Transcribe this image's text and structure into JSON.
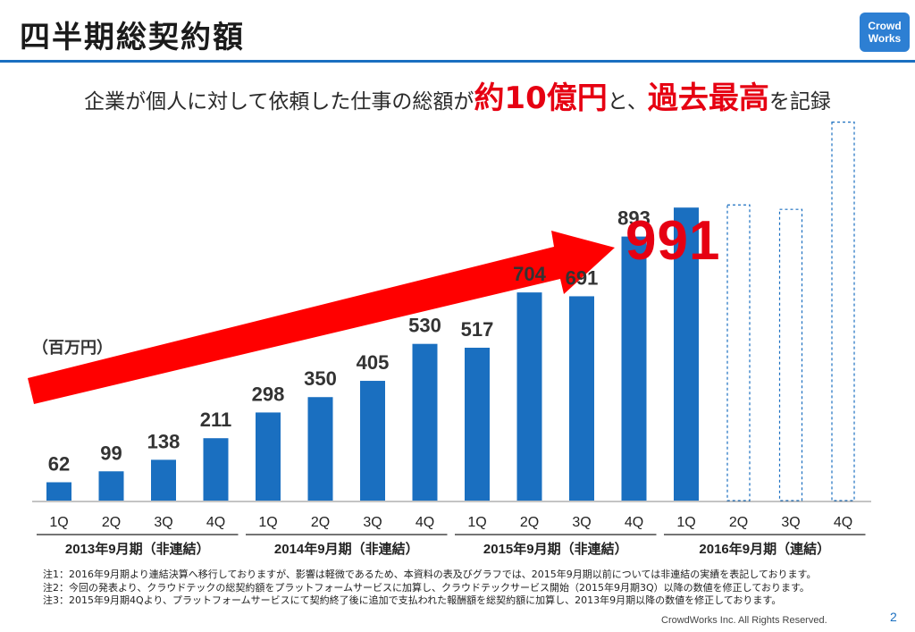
{
  "header": {
    "title": "四半期総契約額"
  },
  "logo": {
    "line1": "Crowd",
    "line2": "Works"
  },
  "subtitle": {
    "part1": "企業が個人に対して依頼した仕事の総額が",
    "highlight1": "約10億円",
    "part2": "と、",
    "highlight2": "過去最高",
    "part3": "を記録"
  },
  "unit_label": "（百万円）",
  "highlight_value": "991",
  "chart_data": {
    "type": "bar",
    "title": "四半期総契約額",
    "ylabel": "（百万円）",
    "ylim": [
      0,
      1300
    ],
    "categories": [
      "1Q",
      "2Q",
      "3Q",
      "4Q",
      "1Q",
      "2Q",
      "3Q",
      "4Q",
      "1Q",
      "2Q",
      "3Q",
      "4Q",
      "1Q",
      "2Q",
      "3Q",
      "4Q"
    ],
    "values": [
      62,
      99,
      138,
      211,
      298,
      350,
      405,
      530,
      517,
      704,
      691,
      893,
      991,
      null,
      null,
      null
    ],
    "value_labels": [
      "62",
      "99",
      "138",
      "211",
      "298",
      "350",
      "405",
      "530",
      "517",
      "704",
      "691",
      "893",
      "",
      "",
      "",
      ""
    ],
    "placeholders": [
      {
        "index": 13,
        "value": 1000
      },
      {
        "index": 14,
        "value": 985
      },
      {
        "index": 15,
        "value": 1280
      }
    ],
    "groups": [
      {
        "label": "2013年9月期（非連結）",
        "start": 0,
        "end": 3
      },
      {
        "label": "2014年9月期（非連結）",
        "start": 4,
        "end": 7
      },
      {
        "label": "2015年9月期（非連結）",
        "start": 8,
        "end": 11
      },
      {
        "label": "2016年9月期（連結）",
        "start": 12,
        "end": 15
      }
    ],
    "bar_color": "#1a6fc0",
    "arrow_color": "#ff0000"
  },
  "notes": [
    "注1：2016年9月期より連結決算へ移行しておりますが、影響は軽微であるため、本資料の表及びグラフでは、2015年9月期以前については非連結の実績を表記しております。",
    "注2：今回の発表より、クラウドテックの総契約額をプラットフォームサービスに加算し、クラウドテックサービス開始（2015年9月期3Q）以降の数値を修正しております。",
    "注3：2015年9月期4Qより、プラットフォームサービスにて契約終了後に追加で支払われた報酬額を総契約額に加算し、2013年9月期以降の数値を修正しております。"
  ],
  "copyright": "CrowdWorks Inc. All Rights Reserved.",
  "page_number": "2"
}
